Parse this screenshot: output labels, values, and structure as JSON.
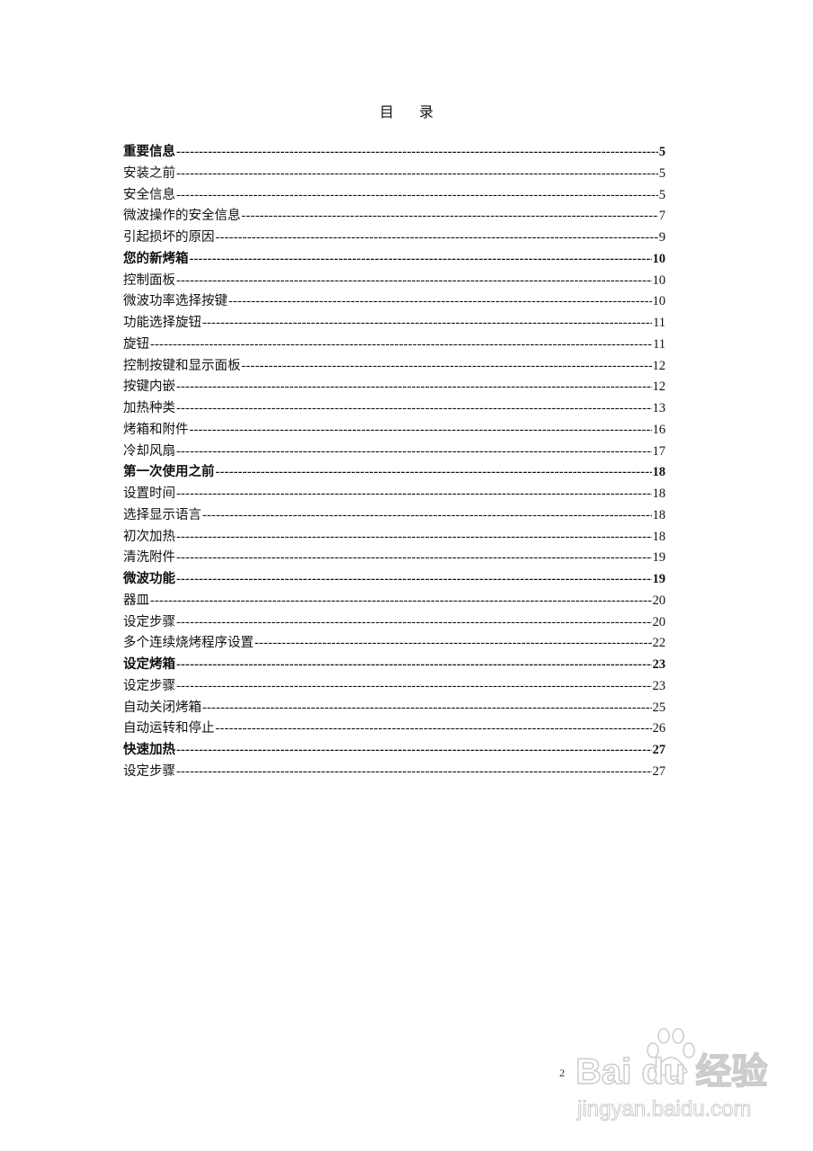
{
  "title": [
    "目",
    "录"
  ],
  "entries": [
    {
      "label": "重要信息",
      "page": "5",
      "bold": true
    },
    {
      "label": "安装之前",
      "page": "5",
      "bold": false
    },
    {
      "label": "安全信息",
      "page": "5",
      "bold": false
    },
    {
      "label": "微波操作的安全信息",
      "page": "7",
      "bold": false
    },
    {
      "label": "引起损坏的原因",
      "page": "9",
      "bold": false
    },
    {
      "label": "您的新烤箱",
      "page": "10",
      "bold": true
    },
    {
      "label": "控制面板",
      "page": "10",
      "bold": false
    },
    {
      "label": "微波功率选择按键",
      "page": "10",
      "bold": false
    },
    {
      "label": "功能选择旋钮",
      "page": "11",
      "bold": false
    },
    {
      "label": "旋钮",
      "page": "11",
      "bold": false
    },
    {
      "label": "控制按键和显示面板",
      "page": "12",
      "bold": false
    },
    {
      "label": "按键内嵌",
      "page": "12",
      "bold": false
    },
    {
      "label": "加热种类",
      "page": "13",
      "bold": false
    },
    {
      "label": "烤箱和附件",
      "page": "16",
      "bold": false
    },
    {
      "label": "冷却风扇",
      "page": "17",
      "bold": false
    },
    {
      "label": "第一次使用之前",
      "page": "18",
      "bold": true
    },
    {
      "label": "设置时间",
      "page": "18",
      "bold": false
    },
    {
      "label": "选择显示语言",
      "page": "18",
      "bold": false
    },
    {
      "label": "初次加热",
      "page": "18",
      "bold": false
    },
    {
      "label": "清洗附件",
      "page": "19",
      "bold": false
    },
    {
      "label": "微波功能",
      "page": "19",
      "bold": true
    },
    {
      "label": "器皿",
      "page": "20",
      "bold": false
    },
    {
      "label": "设定步骤",
      "page": "20",
      "bold": false
    },
    {
      "label": "多个连续烧烤程序设置",
      "page": "22",
      "bold": false
    },
    {
      "label": "设定烤箱",
      "page": "23",
      "bold": true
    },
    {
      "label": "设定步骤",
      "page": "23",
      "bold": false
    },
    {
      "label": "自动关闭烤箱",
      "page": "25",
      "bold": false
    },
    {
      "label": "自动运转和停止",
      "page": "26",
      "bold": false
    },
    {
      "label": "快速加热",
      "page": "27",
      "bold": true
    },
    {
      "label": "设定步骤",
      "page": "27",
      "bold": false
    }
  ],
  "page_number": "2",
  "watermark": {
    "brand": "Bai du 经验",
    "url": "jingyan.baidu.com"
  }
}
